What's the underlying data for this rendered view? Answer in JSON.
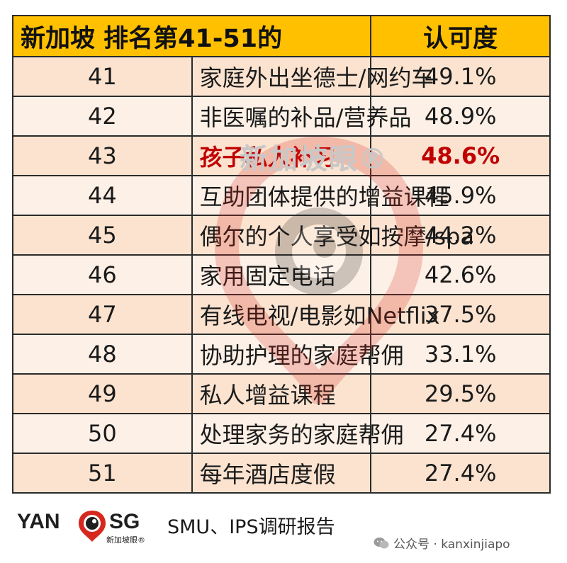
{
  "table": {
    "title": "新加坡 排名第41-51的",
    "score_header": "认可度",
    "rows": [
      {
        "rank": "41",
        "item": "家庭外出坐德士/网约车",
        "score": "49.1%"
      },
      {
        "rank": "42",
        "item": "非医嘱的补品/营养品",
        "score": "48.9%"
      },
      {
        "rank": "43",
        "item": "孩子私人补习",
        "score": "48.6%"
      },
      {
        "rank": "44",
        "item": "互助团体提供的增益课程",
        "score": "45.9%"
      },
      {
        "rank": "45",
        "item": "偶尔的个人享受如按摩/spa",
        "score": "44.2%"
      },
      {
        "rank": "46",
        "item": "家用固定电话",
        "score": "42.6%"
      },
      {
        "rank": "47",
        "item": "有线电视/电影如Netflix",
        "score": "37.5%"
      },
      {
        "rank": "48",
        "item": "协助护理的家庭帮佣",
        "score": "33.1%"
      },
      {
        "rank": "49",
        "item": "私人增益课程",
        "score": "29.5%"
      },
      {
        "rank": "50",
        "item": "处理家务的家庭帮佣",
        "score": "27.4%"
      },
      {
        "rank": "51",
        "item": "每年酒店度假",
        "score": "27.4%"
      }
    ],
    "highlight_color": "#c00000",
    "header_color": "#ffc000"
  },
  "watermark": {
    "text": "新加坡眼®"
  },
  "footer": {
    "logo_left": "YAN",
    "logo_right": "SG",
    "logo_sub": "新加坡眼®",
    "logo_icon": "eye-pin-icon",
    "source": "SMU、IPS调研报告",
    "wechat_icon": "wechat-icon",
    "wechat_label": "公众号 · kanxinjiapo"
  }
}
